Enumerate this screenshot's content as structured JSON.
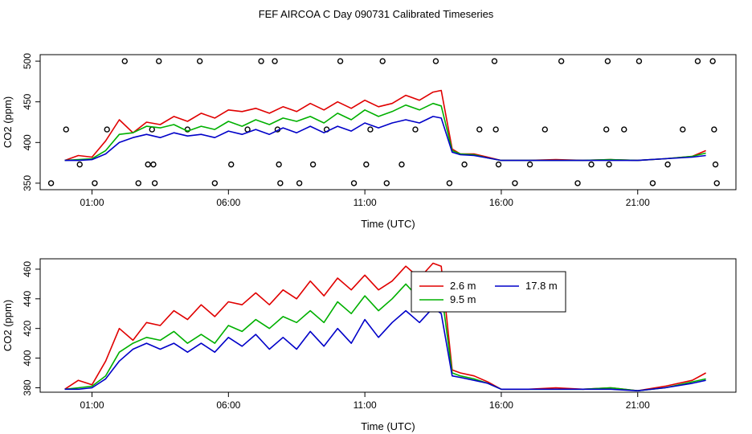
{
  "title": "FEF AIRCOA C  Day 090731  Calibrated Timeseries",
  "colors": {
    "red": "#e00000",
    "green": "#00b000",
    "blue": "#0000c8"
  },
  "chart_data": [
    {
      "type": "line",
      "xlabel": "Time (UTC)",
      "ylabel": "CO2 (ppm)",
      "xlim": [
        -0.9,
        24.6
      ],
      "ylim": [
        342,
        508
      ],
      "xticks": [
        1,
        6,
        11,
        16,
        21
      ],
      "xtick_labels": [
        "01:00",
        "06:00",
        "11:00",
        "16:00",
        "21:00"
      ],
      "yticks": [
        350,
        400,
        450,
        500
      ],
      "ytick_labels": [
        "350",
        "400",
        "450",
        "500"
      ],
      "series": [
        {
          "name": "2.6 m",
          "color": "red",
          "x": [
            0,
            0.5,
            1,
            1.5,
            2,
            2.5,
            3,
            3.5,
            4,
            4.5,
            5,
            5.5,
            6,
            6.5,
            7,
            7.5,
            8,
            8.5,
            9,
            9.5,
            10,
            10.5,
            11,
            11.5,
            12,
            12.5,
            13,
            13.5,
            13.8,
            14.2,
            14.5,
            15,
            15.5,
            16,
            17,
            18,
            19,
            20,
            21,
            22,
            23,
            23.5
          ],
          "y": [
            378,
            384,
            382,
            402,
            428,
            412,
            425,
            422,
            432,
            426,
            436,
            430,
            440,
            438,
            442,
            436,
            444,
            438,
            448,
            440,
            450,
            442,
            452,
            444,
            448,
            458,
            452,
            462,
            464,
            392,
            386,
            386,
            382,
            378,
            378,
            379,
            378,
            379,
            378,
            380,
            383,
            390
          ]
        },
        {
          "name": "9.5 m",
          "color": "green",
          "x": [
            0,
            0.5,
            1,
            1.5,
            2,
            2.5,
            3,
            3.5,
            4,
            4.5,
            5,
            5.5,
            6,
            6.5,
            7,
            7.5,
            8,
            8.5,
            9,
            9.5,
            10,
            10.5,
            11,
            11.5,
            12,
            12.5,
            13,
            13.5,
            13.8,
            14.2,
            14.5,
            15,
            15.5,
            16,
            17,
            18,
            19,
            20,
            21,
            22,
            23,
            23.5
          ],
          "y": [
            378,
            379,
            380,
            390,
            410,
            412,
            420,
            418,
            422,
            414,
            420,
            416,
            426,
            420,
            428,
            422,
            430,
            426,
            432,
            424,
            436,
            428,
            440,
            432,
            438,
            446,
            440,
            448,
            445,
            390,
            386,
            385,
            381,
            378,
            378,
            378,
            378,
            379,
            378,
            380,
            383,
            387
          ]
        },
        {
          "name": "17.8 m",
          "color": "blue",
          "x": [
            0,
            0.5,
            1,
            1.5,
            2,
            2.5,
            3,
            3.5,
            4,
            4.5,
            5,
            5.5,
            6,
            6.5,
            7,
            7.5,
            8,
            8.5,
            9,
            9.5,
            10,
            10.5,
            11,
            11.5,
            12,
            12.5,
            13,
            13.5,
            13.8,
            14.2,
            14.5,
            15,
            15.5,
            16,
            17,
            18,
            19,
            20,
            21,
            22,
            23,
            23.5
          ],
          "y": [
            378,
            378,
            379,
            386,
            400,
            406,
            410,
            406,
            412,
            408,
            410,
            406,
            414,
            410,
            416,
            410,
            418,
            412,
            420,
            412,
            420,
            414,
            424,
            418,
            424,
            428,
            424,
            432,
            430,
            388,
            385,
            384,
            381,
            378,
            378,
            378,
            378,
            378,
            378,
            380,
            382,
            384
          ]
        }
      ],
      "markers": {
        "x": [
          -0.5,
          0.05,
          0.55,
          1.1,
          1.55,
          2.2,
          2.7,
          3.05,
          3.2,
          3.25,
          3.3,
          3.45,
          4.5,
          4.95,
          5.5,
          6.1,
          6.7,
          7.2,
          7.7,
          7.8,
          7.85,
          7.9,
          8.6,
          9.1,
          9.6,
          10.1,
          10.6,
          11.05,
          11.2,
          11.65,
          11.8,
          12.35,
          12.85,
          13.6,
          14.1,
          14.65,
          15.2,
          15.75,
          15.8,
          15.9,
          16.5,
          17.05,
          17.6,
          18.2,
          18.8,
          19.3,
          19.85,
          19.9,
          19.95,
          20.5,
          21.05,
          21.55,
          22.1,
          22.65,
          23.2,
          23.75,
          23.8,
          23.85,
          23.9
        ],
        "y": [
          350,
          416,
          373,
          350,
          416,
          500,
          350,
          373,
          416,
          373,
          350,
          500,
          416,
          500,
          350,
          373,
          416,
          500,
          500,
          416,
          373,
          350,
          350,
          373,
          416,
          500,
          350,
          373,
          416,
          500,
          350,
          373,
          416,
          500,
          350,
          373,
          416,
          500,
          416,
          373,
          350,
          373,
          416,
          500,
          350,
          373,
          416,
          500,
          373,
          416,
          500,
          350,
          373,
          416,
          500,
          500,
          416,
          373,
          350
        ]
      }
    },
    {
      "type": "line",
      "xlabel": "Time (UTC)",
      "ylabel": "CO2 (ppm)",
      "xlim": [
        -0.9,
        24.6
      ],
      "ylim": [
        377,
        467
      ],
      "xticks": [
        1,
        6,
        11,
        16,
        21
      ],
      "xtick_labels": [
        "01:00",
        "06:00",
        "11:00",
        "16:00",
        "21:00"
      ],
      "yticks": [
        380,
        400,
        420,
        440,
        460
      ],
      "ytick_labels": [
        "380",
        "400",
        "420",
        "440",
        "460"
      ],
      "legend": {
        "position": "top-center",
        "entries": [
          "2.6 m",
          "17.8 m",
          "9.5 m"
        ]
      },
      "series": [
        {
          "name": "2.6 m",
          "color": "red",
          "x": [
            0,
            0.5,
            1,
            1.5,
            2,
            2.5,
            3,
            3.5,
            4,
            4.5,
            5,
            5.5,
            6,
            6.5,
            7,
            7.5,
            8,
            8.5,
            9,
            9.5,
            10,
            10.5,
            11,
            11.5,
            12,
            12.5,
            13,
            13.5,
            13.8,
            14.2,
            14.5,
            15,
            15.5,
            16,
            17,
            18,
            19,
            20,
            21,
            22,
            23,
            23.5
          ],
          "y": [
            379,
            385,
            382,
            398,
            420,
            412,
            424,
            422,
            432,
            426,
            436,
            428,
            438,
            436,
            444,
            436,
            446,
            440,
            452,
            442,
            454,
            446,
            456,
            446,
            452,
            462,
            454,
            464,
            462,
            392,
            390,
            388,
            384,
            379,
            379,
            380,
            379,
            380,
            378,
            381,
            385,
            390
          ]
        },
        {
          "name": "9.5 m",
          "color": "green",
          "x": [
            0,
            0.5,
            1,
            1.5,
            2,
            2.5,
            3,
            3.5,
            4,
            4.5,
            5,
            5.5,
            6,
            6.5,
            7,
            7.5,
            8,
            8.5,
            9,
            9.5,
            10,
            10.5,
            11,
            11.5,
            12,
            12.5,
            13,
            13.5,
            13.8,
            14.2,
            14.5,
            15,
            15.5,
            16,
            17,
            18,
            19,
            20,
            21,
            22,
            23,
            23.5
          ],
          "y": [
            379,
            380,
            381,
            388,
            404,
            410,
            414,
            412,
            418,
            410,
            416,
            410,
            422,
            418,
            426,
            420,
            428,
            424,
            432,
            424,
            438,
            430,
            442,
            432,
            440,
            450,
            440,
            452,
            446,
            390,
            388,
            386,
            383,
            379,
            379,
            379,
            379,
            380,
            378,
            380,
            384,
            386
          ]
        },
        {
          "name": "17.8 m",
          "color": "blue",
          "x": [
            0,
            0.5,
            1,
            1.5,
            2,
            2.5,
            3,
            3.5,
            4,
            4.5,
            5,
            5.5,
            6,
            6.5,
            7,
            7.5,
            8,
            8.5,
            9,
            9.5,
            10,
            10.5,
            11,
            11.5,
            12,
            12.5,
            13,
            13.5,
            13.8,
            14.2,
            14.5,
            15,
            15.5,
            16,
            17,
            18,
            19,
            20,
            21,
            22,
            23,
            23.5
          ],
          "y": [
            379,
            379,
            380,
            386,
            398,
            406,
            410,
            406,
            410,
            404,
            410,
            404,
            414,
            408,
            416,
            406,
            414,
            406,
            418,
            408,
            420,
            410,
            426,
            414,
            424,
            432,
            424,
            434,
            430,
            388,
            387,
            385,
            383,
            379,
            379,
            379,
            379,
            379,
            378,
            380,
            383,
            385
          ]
        }
      ]
    }
  ]
}
